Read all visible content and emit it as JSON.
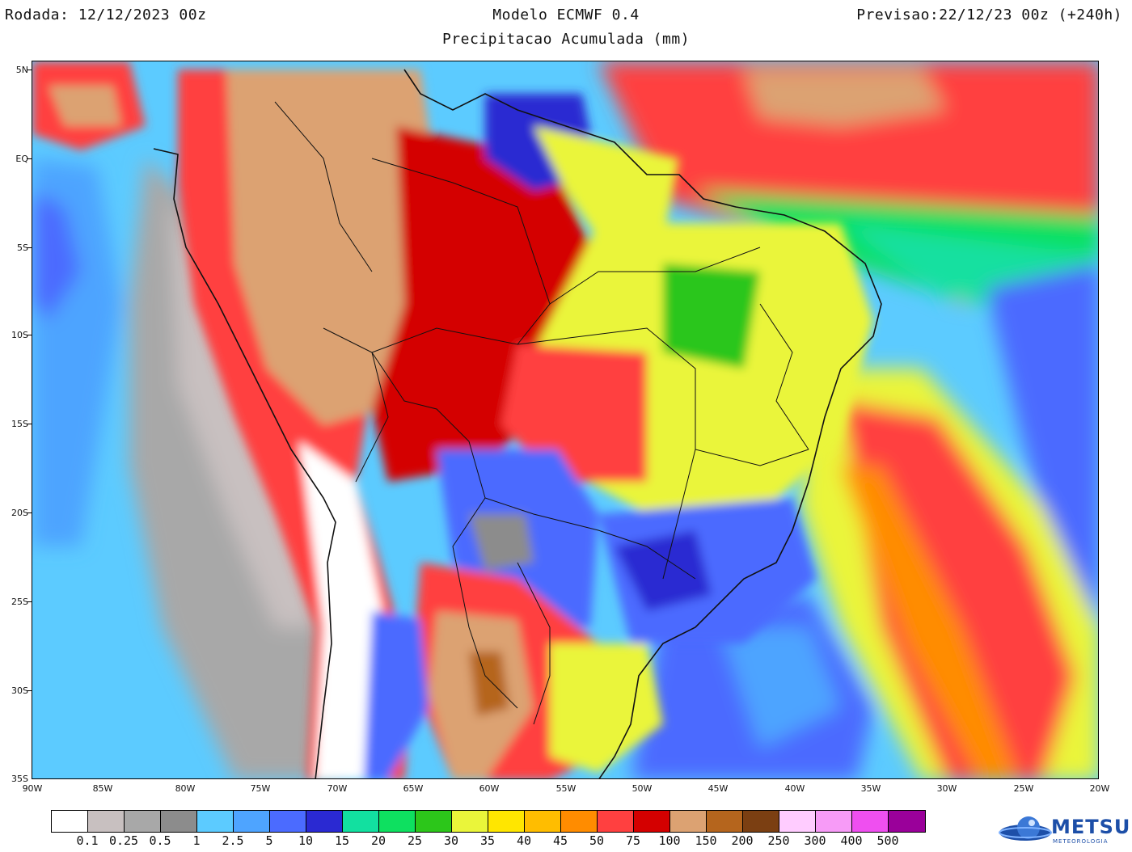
{
  "header": {
    "run": "Rodada: 12/12/2023 00z",
    "model": "Modelo ECMWF 0.4",
    "forecast": "Previsao:22/12/23 00z (+240h)",
    "subtitle": "Precipitacao Acumulada (mm)"
  },
  "axes": {
    "lat_labels": [
      "5N",
      "EQ",
      "5S",
      "10S",
      "15S",
      "20S",
      "25S",
      "30S",
      "35S"
    ],
    "lon_labels": [
      "90W",
      "85W",
      "80W",
      "75W",
      "70W",
      "65W",
      "60W",
      "55W",
      "50W",
      "45W",
      "40W",
      "35W",
      "30W",
      "25W",
      "20W"
    ],
    "lat_range": [
      -35,
      5
    ],
    "lon_range": [
      -90,
      -20
    ]
  },
  "legend": {
    "labels": [
      "0.1",
      "0.25",
      "0.5",
      "1",
      "2.5",
      "5",
      "10",
      "15",
      "20",
      "25",
      "30",
      "35",
      "40",
      "45",
      "50",
      "75",
      "100",
      "150",
      "200",
      "250",
      "300",
      "400",
      "500"
    ],
    "colors": [
      "#ffffff",
      "#c8c0c0",
      "#a8a8a8",
      "#8c8c8c",
      "#5ccbff",
      "#4ea4ff",
      "#4b6bff",
      "#2a29d2",
      "#12e0a0",
      "#0ee060",
      "#2cc61a",
      "#eaf53a",
      "#ffe600",
      "#ffbd00",
      "#ff8c00",
      "#ff4040",
      "#d40000",
      "#dca272",
      "#b5651d",
      "#7b3f12",
      "#ffccff",
      "#f79bf7",
      "#ef4ff0",
      "#9a009a"
    ]
  },
  "logo": {
    "text": "METSUL",
    "sub": "METEOROLOGIA"
  }
}
